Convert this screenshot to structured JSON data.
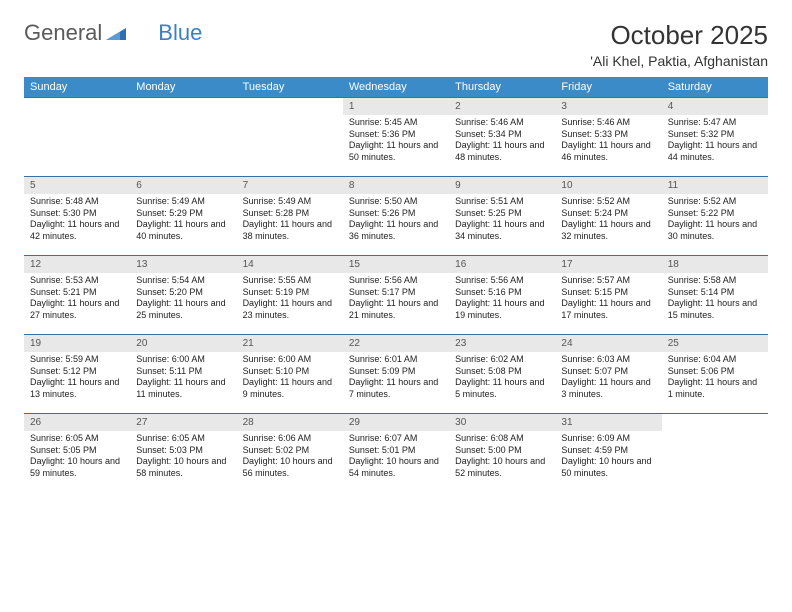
{
  "logo": {
    "part1": "General",
    "part2": "Blue"
  },
  "title": "October 2025",
  "location": "'Ali Khel, Paktia, Afghanistan",
  "header_bg": "#3b8bc9",
  "row_border": "#3b6ea5",
  "daynum_bg": "#e8e8e8",
  "weekdays": [
    "Sunday",
    "Monday",
    "Tuesday",
    "Wednesday",
    "Thursday",
    "Friday",
    "Saturday"
  ],
  "weeks": [
    [
      {
        "num": "",
        "sunrise": "",
        "sunset": "",
        "daylight": ""
      },
      {
        "num": "",
        "sunrise": "",
        "sunset": "",
        "daylight": ""
      },
      {
        "num": "",
        "sunrise": "",
        "sunset": "",
        "daylight": ""
      },
      {
        "num": "1",
        "sunrise": "Sunrise: 5:45 AM",
        "sunset": "Sunset: 5:36 PM",
        "daylight": "Daylight: 11 hours and 50 minutes."
      },
      {
        "num": "2",
        "sunrise": "Sunrise: 5:46 AM",
        "sunset": "Sunset: 5:34 PM",
        "daylight": "Daylight: 11 hours and 48 minutes."
      },
      {
        "num": "3",
        "sunrise": "Sunrise: 5:46 AM",
        "sunset": "Sunset: 5:33 PM",
        "daylight": "Daylight: 11 hours and 46 minutes."
      },
      {
        "num": "4",
        "sunrise": "Sunrise: 5:47 AM",
        "sunset": "Sunset: 5:32 PM",
        "daylight": "Daylight: 11 hours and 44 minutes."
      }
    ],
    [
      {
        "num": "5",
        "sunrise": "Sunrise: 5:48 AM",
        "sunset": "Sunset: 5:30 PM",
        "daylight": "Daylight: 11 hours and 42 minutes."
      },
      {
        "num": "6",
        "sunrise": "Sunrise: 5:49 AM",
        "sunset": "Sunset: 5:29 PM",
        "daylight": "Daylight: 11 hours and 40 minutes."
      },
      {
        "num": "7",
        "sunrise": "Sunrise: 5:49 AM",
        "sunset": "Sunset: 5:28 PM",
        "daylight": "Daylight: 11 hours and 38 minutes."
      },
      {
        "num": "8",
        "sunrise": "Sunrise: 5:50 AM",
        "sunset": "Sunset: 5:26 PM",
        "daylight": "Daylight: 11 hours and 36 minutes."
      },
      {
        "num": "9",
        "sunrise": "Sunrise: 5:51 AM",
        "sunset": "Sunset: 5:25 PM",
        "daylight": "Daylight: 11 hours and 34 minutes."
      },
      {
        "num": "10",
        "sunrise": "Sunrise: 5:52 AM",
        "sunset": "Sunset: 5:24 PM",
        "daylight": "Daylight: 11 hours and 32 minutes."
      },
      {
        "num": "11",
        "sunrise": "Sunrise: 5:52 AM",
        "sunset": "Sunset: 5:22 PM",
        "daylight": "Daylight: 11 hours and 30 minutes."
      }
    ],
    [
      {
        "num": "12",
        "sunrise": "Sunrise: 5:53 AM",
        "sunset": "Sunset: 5:21 PM",
        "daylight": "Daylight: 11 hours and 27 minutes."
      },
      {
        "num": "13",
        "sunrise": "Sunrise: 5:54 AM",
        "sunset": "Sunset: 5:20 PM",
        "daylight": "Daylight: 11 hours and 25 minutes."
      },
      {
        "num": "14",
        "sunrise": "Sunrise: 5:55 AM",
        "sunset": "Sunset: 5:19 PM",
        "daylight": "Daylight: 11 hours and 23 minutes."
      },
      {
        "num": "15",
        "sunrise": "Sunrise: 5:56 AM",
        "sunset": "Sunset: 5:17 PM",
        "daylight": "Daylight: 11 hours and 21 minutes."
      },
      {
        "num": "16",
        "sunrise": "Sunrise: 5:56 AM",
        "sunset": "Sunset: 5:16 PM",
        "daylight": "Daylight: 11 hours and 19 minutes."
      },
      {
        "num": "17",
        "sunrise": "Sunrise: 5:57 AM",
        "sunset": "Sunset: 5:15 PM",
        "daylight": "Daylight: 11 hours and 17 minutes."
      },
      {
        "num": "18",
        "sunrise": "Sunrise: 5:58 AM",
        "sunset": "Sunset: 5:14 PM",
        "daylight": "Daylight: 11 hours and 15 minutes."
      }
    ],
    [
      {
        "num": "19",
        "sunrise": "Sunrise: 5:59 AM",
        "sunset": "Sunset: 5:12 PM",
        "daylight": "Daylight: 11 hours and 13 minutes."
      },
      {
        "num": "20",
        "sunrise": "Sunrise: 6:00 AM",
        "sunset": "Sunset: 5:11 PM",
        "daylight": "Daylight: 11 hours and 11 minutes."
      },
      {
        "num": "21",
        "sunrise": "Sunrise: 6:00 AM",
        "sunset": "Sunset: 5:10 PM",
        "daylight": "Daylight: 11 hours and 9 minutes."
      },
      {
        "num": "22",
        "sunrise": "Sunrise: 6:01 AM",
        "sunset": "Sunset: 5:09 PM",
        "daylight": "Daylight: 11 hours and 7 minutes."
      },
      {
        "num": "23",
        "sunrise": "Sunrise: 6:02 AM",
        "sunset": "Sunset: 5:08 PM",
        "daylight": "Daylight: 11 hours and 5 minutes."
      },
      {
        "num": "24",
        "sunrise": "Sunrise: 6:03 AM",
        "sunset": "Sunset: 5:07 PM",
        "daylight": "Daylight: 11 hours and 3 minutes."
      },
      {
        "num": "25",
        "sunrise": "Sunrise: 6:04 AM",
        "sunset": "Sunset: 5:06 PM",
        "daylight": "Daylight: 11 hours and 1 minute."
      }
    ],
    [
      {
        "num": "26",
        "sunrise": "Sunrise: 6:05 AM",
        "sunset": "Sunset: 5:05 PM",
        "daylight": "Daylight: 10 hours and 59 minutes."
      },
      {
        "num": "27",
        "sunrise": "Sunrise: 6:05 AM",
        "sunset": "Sunset: 5:03 PM",
        "daylight": "Daylight: 10 hours and 58 minutes."
      },
      {
        "num": "28",
        "sunrise": "Sunrise: 6:06 AM",
        "sunset": "Sunset: 5:02 PM",
        "daylight": "Daylight: 10 hours and 56 minutes."
      },
      {
        "num": "29",
        "sunrise": "Sunrise: 6:07 AM",
        "sunset": "Sunset: 5:01 PM",
        "daylight": "Daylight: 10 hours and 54 minutes."
      },
      {
        "num": "30",
        "sunrise": "Sunrise: 6:08 AM",
        "sunset": "Sunset: 5:00 PM",
        "daylight": "Daylight: 10 hours and 52 minutes."
      },
      {
        "num": "31",
        "sunrise": "Sunrise: 6:09 AM",
        "sunset": "Sunset: 4:59 PM",
        "daylight": "Daylight: 10 hours and 50 minutes."
      },
      {
        "num": "",
        "sunrise": "",
        "sunset": "",
        "daylight": ""
      }
    ]
  ]
}
